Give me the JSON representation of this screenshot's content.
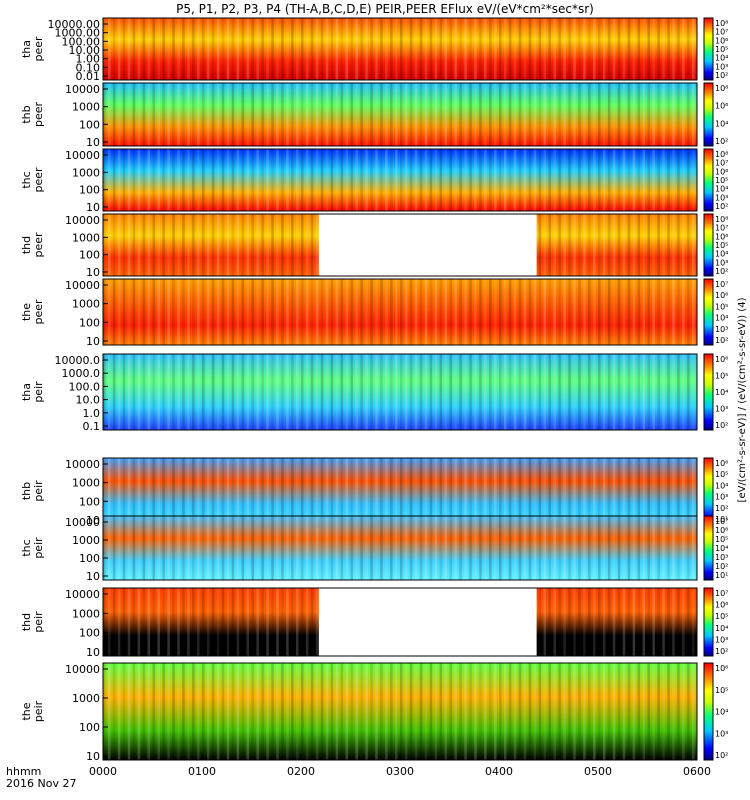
{
  "title": "P5, P1, P2, P3, P4 (TH-A,B,C,D,E) PEIR,PEER EFlux eV/(eV*cm²*sec*sr)",
  "time_axis": {
    "label_line1": "hhmm",
    "label_line2": "2016 Nov 27",
    "ticks": [
      "0000",
      "0100",
      "0200",
      "0300",
      "0400",
      "0500",
      "0600"
    ],
    "range_hours": [
      0,
      6
    ]
  },
  "colorbar_label": "[eV/(cm²-s-sr-eV)] / (eV/(cm²-s-sr-eV)) (4)",
  "chart_data": [
    {
      "type": "heatmap",
      "panel": "tha-peer",
      "ylabel": [
        "tha",
        "peer"
      ],
      "yscale": "log",
      "yticks": [
        "10000.00",
        "1000.00",
        "100.00",
        "10.00",
        "1.00",
        "0.10",
        "0.01"
      ],
      "colorbar_ticks": [
        "10⁸",
        "10⁷",
        "10⁶",
        "10⁵",
        "10⁴",
        "10³",
        "10²"
      ]
    },
    {
      "type": "heatmap",
      "panel": "thb-peer",
      "ylabel": [
        "thb",
        "peer"
      ],
      "yscale": "log",
      "yticks": [
        "10000",
        "1000",
        "100",
        "10"
      ],
      "colorbar_ticks": [
        "10⁸",
        "10⁶",
        "10⁴",
        "10²"
      ]
    },
    {
      "type": "heatmap",
      "panel": "thc-peer",
      "ylabel": [
        "thc",
        "peer"
      ],
      "yscale": "log",
      "yticks": [
        "10000",
        "1000",
        "100",
        "10"
      ],
      "colorbar_ticks": [
        "10⁸",
        "10⁷",
        "10⁶",
        "10⁵",
        "10⁴",
        "10³",
        "10²"
      ]
    },
    {
      "type": "heatmap",
      "panel": "thd-peer",
      "ylabel": [
        "thd",
        "peer"
      ],
      "yscale": "log",
      "yticks": [
        "10000",
        "1000",
        "100",
        "10"
      ],
      "colorbar_ticks": [
        "10⁸",
        "10⁷",
        "10⁶",
        "10⁵",
        "10⁴",
        "10³",
        "10²"
      ],
      "data_gap_hours": [
        2.18,
        4.38
      ]
    },
    {
      "type": "heatmap",
      "panel": "the-peer",
      "ylabel": [
        "the",
        "peer"
      ],
      "yscale": "log",
      "yticks": [
        "10000",
        "1000",
        "100",
        "10"
      ],
      "colorbar_ticks": [
        "10⁷",
        "10⁶",
        "10⁵",
        "10⁴",
        "10³",
        "10²"
      ]
    },
    {
      "type": "heatmap",
      "panel": "tha-peir",
      "ylabel": [
        "tha",
        "peir"
      ],
      "yscale": "log",
      "yticks": [
        "10000.0",
        "1000.0",
        "100.0",
        "10.0",
        "1.0",
        "0.1"
      ],
      "colorbar_ticks": [
        "10⁶",
        "10⁵",
        "10⁴",
        "10³",
        "10²"
      ]
    },
    {
      "type": "heatmap",
      "panel": "thb-peir",
      "ylabel": [
        "thb",
        "peir"
      ],
      "yscale": "log",
      "yticks": [
        "10000",
        "1000",
        "100",
        "10"
      ],
      "colorbar_ticks": [
        "10⁶",
        "10⁵",
        "10⁴",
        "10³",
        "10²",
        "10¹"
      ]
    },
    {
      "type": "heatmap",
      "panel": "thc-peir",
      "ylabel": [
        "thc",
        "peir"
      ],
      "yscale": "log",
      "yticks": [
        "10000",
        "1000",
        "100",
        "10"
      ],
      "colorbar_ticks": [
        "10⁷",
        "10⁶",
        "10⁵",
        "10⁴",
        "10³",
        "10²",
        "10¹"
      ]
    },
    {
      "type": "heatmap",
      "panel": "thd-peir",
      "ylabel": [
        "thd",
        "peir"
      ],
      "yscale": "log",
      "yticks": [
        "10000",
        "1000",
        "100",
        "10"
      ],
      "colorbar_ticks": [
        "10⁷",
        "10⁶",
        "10⁵",
        "10⁴",
        "10³",
        "10²"
      ],
      "data_gap_hours": [
        2.18,
        4.38
      ]
    },
    {
      "type": "heatmap",
      "panel": "the-peir",
      "ylabel": [
        "the",
        "peir"
      ],
      "yscale": "log",
      "yticks": [
        "10000",
        "1000",
        "100",
        "10"
      ],
      "colorbar_ticks": [
        "10⁶",
        "10⁵",
        "10⁴",
        "10³",
        "10²"
      ]
    }
  ]
}
